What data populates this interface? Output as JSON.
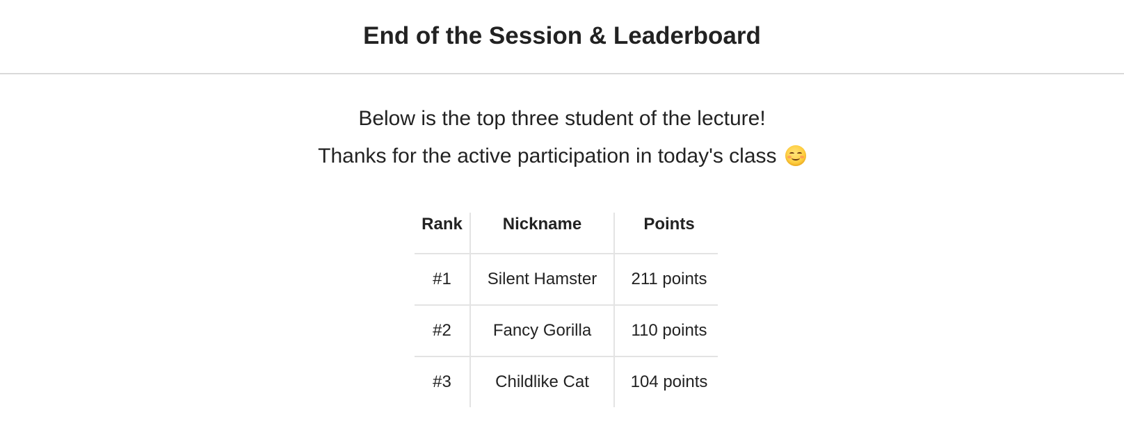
{
  "header": {
    "title": "End of the Session & Leaderboard"
  },
  "message": {
    "line1": "Below is the top three student of the lecture!",
    "line2": "Thanks for the active participation in today's class",
    "emoji_icon": "smiling-face-icon"
  },
  "leaderboard": {
    "columns": [
      "Rank",
      "Nickname",
      "Points"
    ],
    "rows": [
      {
        "rank": "#1",
        "nickname": "Silent Hamster",
        "points": "211 points"
      },
      {
        "rank": "#2",
        "nickname": "Fancy Gorilla",
        "points": "110 points"
      },
      {
        "rank": "#3",
        "nickname": "Childlike Cat",
        "points": "104 points"
      }
    ]
  },
  "colors": {
    "text": "#222222",
    "divider": "#d9d9d9",
    "table_border": "#e3e3e3"
  }
}
